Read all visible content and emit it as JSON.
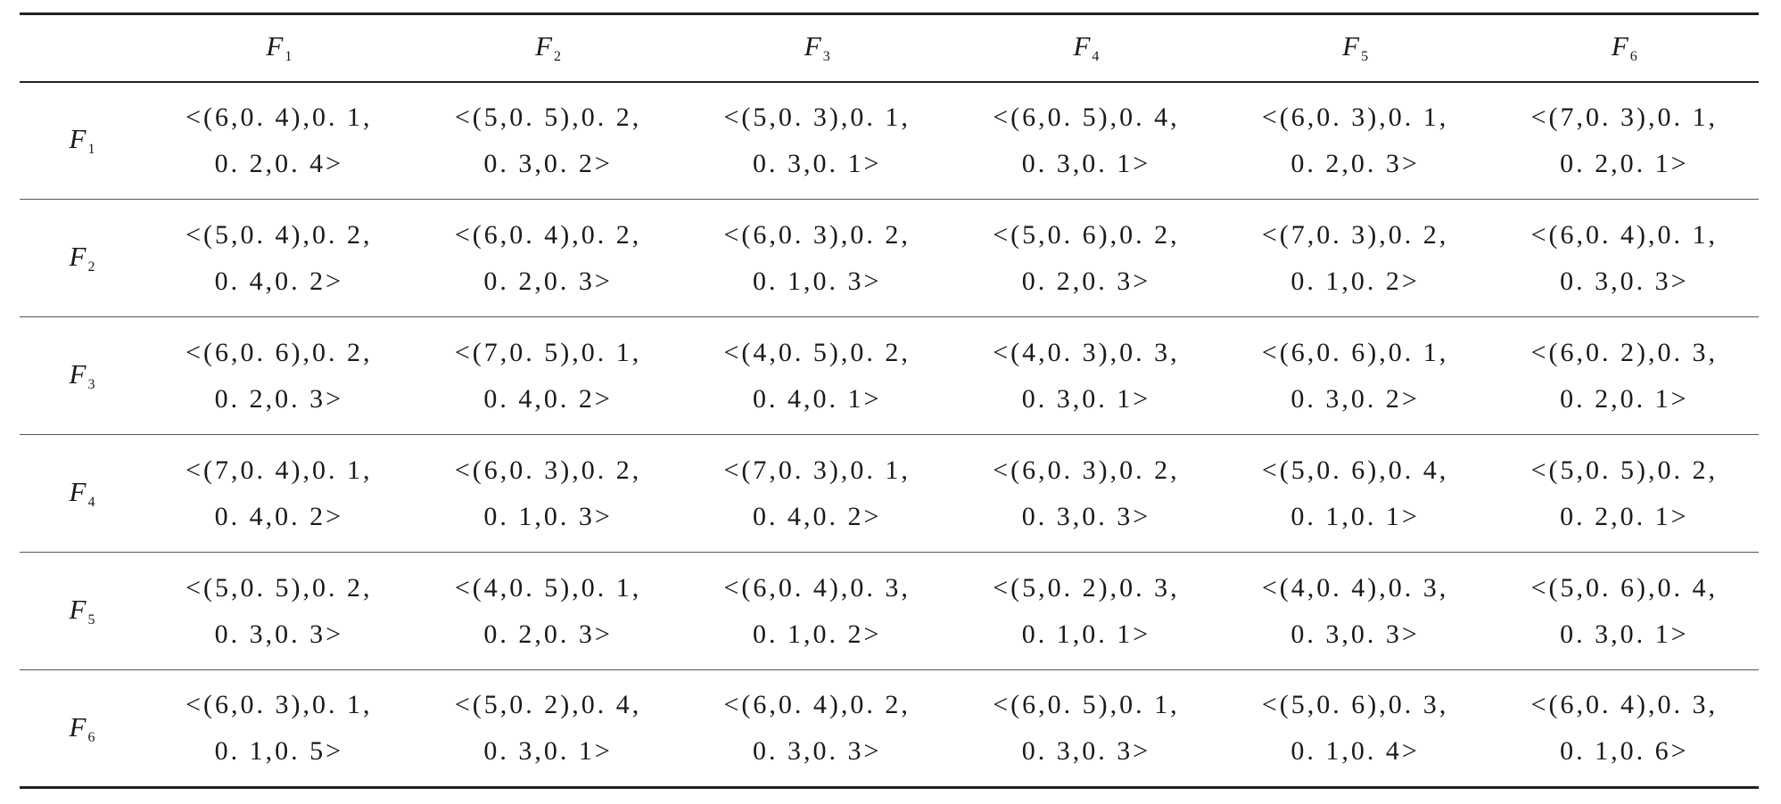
{
  "table": {
    "corner": "",
    "factor_letter": "F",
    "columns": [
      {
        "sub": "1"
      },
      {
        "sub": "2"
      },
      {
        "sub": "3"
      },
      {
        "sub": "4"
      },
      {
        "sub": "5"
      },
      {
        "sub": "6"
      }
    ],
    "rows": [
      {
        "sub": "1",
        "cells": [
          {
            "line1": "<(6,0. 4),0. 1,",
            "line2": "0. 2,0. 4>"
          },
          {
            "line1": "<(5,0. 5),0. 2,",
            "line2": "0. 3,0. 2>"
          },
          {
            "line1": "<(5,0. 3),0. 1,",
            "line2": "0. 3,0. 1>"
          },
          {
            "line1": "<(6,0. 5),0. 4,",
            "line2": "0. 3,0. 1>"
          },
          {
            "line1": "<(6,0. 3),0. 1,",
            "line2": "0. 2,0. 3>"
          },
          {
            "line1": "<(7,0. 3),0. 1,",
            "line2": "0. 2,0. 1>"
          }
        ]
      },
      {
        "sub": "2",
        "cells": [
          {
            "line1": "<(5,0. 4),0. 2,",
            "line2": "0. 4,0. 2>"
          },
          {
            "line1": "<(6,0. 4),0. 2,",
            "line2": "0. 2,0. 3>"
          },
          {
            "line1": "<(6,0. 3),0. 2,",
            "line2": "0. 1,0. 3>"
          },
          {
            "line1": "<(5,0. 6),0. 2,",
            "line2": "0. 2,0. 3>"
          },
          {
            "line1": "<(7,0. 3),0. 2,",
            "line2": "0. 1,0. 2>"
          },
          {
            "line1": "<(6,0. 4),0. 1,",
            "line2": "0. 3,0. 3>"
          }
        ]
      },
      {
        "sub": "3",
        "cells": [
          {
            "line1": "<(6,0. 6),0. 2,",
            "line2": "0. 2,0. 3>"
          },
          {
            "line1": "<(7,0. 5),0. 1,",
            "line2": "0. 4,0. 2>"
          },
          {
            "line1": "<(4,0. 5),0. 2,",
            "line2": "0. 4,0. 1>"
          },
          {
            "line1": "<(4,0. 3),0. 3,",
            "line2": "0. 3,0. 1>"
          },
          {
            "line1": "<(6,0. 6),0. 1,",
            "line2": "0. 3,0. 2>"
          },
          {
            "line1": "<(6,0. 2),0. 3,",
            "line2": "0. 2,0. 1>"
          }
        ]
      },
      {
        "sub": "4",
        "cells": [
          {
            "line1": "<(7,0. 4),0. 1,",
            "line2": "0. 4,0. 2>"
          },
          {
            "line1": "<(6,0. 3),0. 2,",
            "line2": "0. 1,0. 3>"
          },
          {
            "line1": "<(7,0. 3),0. 1,",
            "line2": "0. 4,0. 2>"
          },
          {
            "line1": "<(6,0. 3),0. 2,",
            "line2": "0. 3,0. 3>"
          },
          {
            "line1": "<(5,0. 6),0. 4,",
            "line2": "0. 1,0. 1>"
          },
          {
            "line1": "<(5,0. 5),0. 2,",
            "line2": "0. 2,0. 1>"
          }
        ]
      },
      {
        "sub": "5",
        "cells": [
          {
            "line1": "<(5,0. 5),0. 2,",
            "line2": "0. 3,0. 3>"
          },
          {
            "line1": "<(4,0. 5),0. 1,",
            "line2": "0. 2,0. 3>"
          },
          {
            "line1": "<(6,0. 4),0. 3,",
            "line2": "0. 1,0. 2>"
          },
          {
            "line1": "<(5,0. 2),0. 3,",
            "line2": "0. 1,0. 1>"
          },
          {
            "line1": "<(4,0. 4),0. 3,",
            "line2": "0. 3,0. 3>"
          },
          {
            "line1": "<(5,0. 6),0. 4,",
            "line2": "0. 3,0. 1>"
          }
        ]
      },
      {
        "sub": "6",
        "cells": [
          {
            "line1": "<(6,0. 3),0. 1,",
            "line2": "0. 1,0. 5>"
          },
          {
            "line1": "<(5,0. 2),0. 4,",
            "line2": "0. 3,0. 1>"
          },
          {
            "line1": "<(6,0. 4),0. 2,",
            "line2": "0. 3,0. 3>"
          },
          {
            "line1": "<(6,0. 5),0. 1,",
            "line2": "0. 3,0. 3>"
          },
          {
            "line1": "<(5,0. 6),0. 3,",
            "line2": "0. 1,0. 4>"
          },
          {
            "line1": "<(6,0. 4),0. 3,",
            "line2": "0. 1,0. 6>"
          }
        ]
      }
    ]
  }
}
